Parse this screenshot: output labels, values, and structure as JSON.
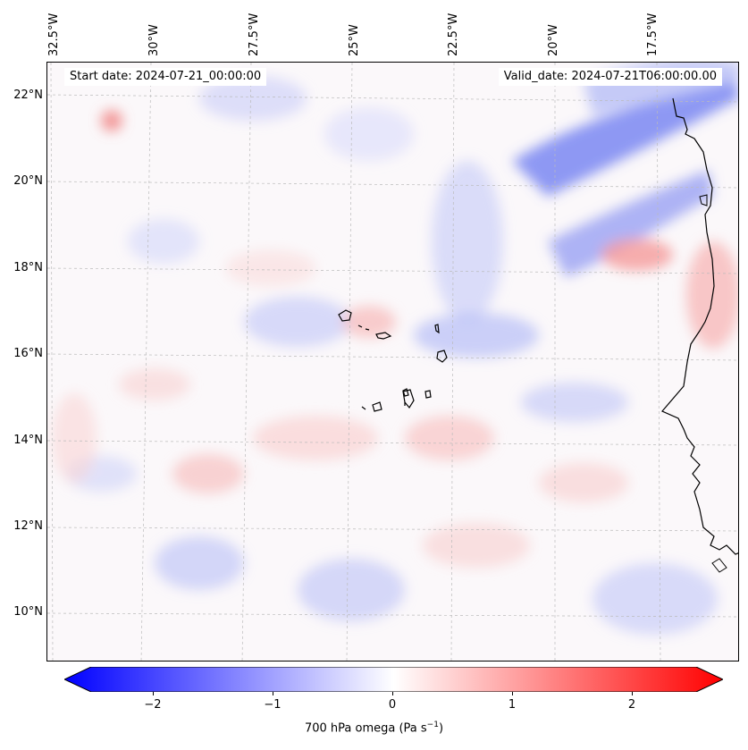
{
  "header": {
    "start_date": "Start date: 2024-07-21_00:00:00",
    "valid_date": "Valid_date: 2024-07-21T06:00:00.00"
  },
  "map": {
    "longitude_labels": [
      "32.5°W",
      "30°W",
      "27.5°W",
      "25°W",
      "22.5°W",
      "20°W",
      "17.5°W"
    ],
    "latitude_labels": [
      "22°N",
      "20°N",
      "18°N",
      "16°N",
      "14°N",
      "12°N",
      "10°N"
    ],
    "field": "700 hPa omega",
    "gridlines": true,
    "coastlines": [
      "Cape Verde islands",
      "West African coast"
    ]
  },
  "colorbar": {
    "label_main": "700 hPa omega (Pa s",
    "label_exp": "−1",
    "label_end": ")",
    "ticks": [
      "−2",
      "−1",
      "0",
      "1",
      "2"
    ],
    "range": [
      -2.6,
      2.6
    ],
    "colors": {
      "negative": "#0000ff",
      "zero": "#ffffff",
      "positive": "#ff0000"
    }
  }
}
